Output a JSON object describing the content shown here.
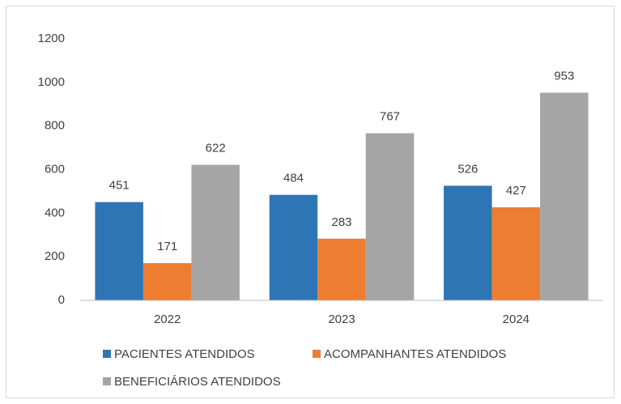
{
  "chart_data": {
    "type": "bar",
    "categories": [
      "2022",
      "2023",
      "2024"
    ],
    "series": [
      {
        "name": "PACIENTES ATENDIDOS",
        "color": "#2e75b6",
        "values": [
          451,
          484,
          526
        ]
      },
      {
        "name": "ACOMPANHANTES ATENDIDOS",
        "color": "#ed7d31",
        "values": [
          171,
          283,
          427
        ]
      },
      {
        "name": "BENEFICIÁRIOS ATENDIDOS",
        "color": "#a5a5a5",
        "values": [
          622,
          767,
          953
        ]
      }
    ],
    "ylim": [
      0,
      1200
    ],
    "yticks": [
      0,
      200,
      400,
      600,
      800,
      1000,
      1200
    ],
    "grid": false,
    "legend": "bottom"
  }
}
